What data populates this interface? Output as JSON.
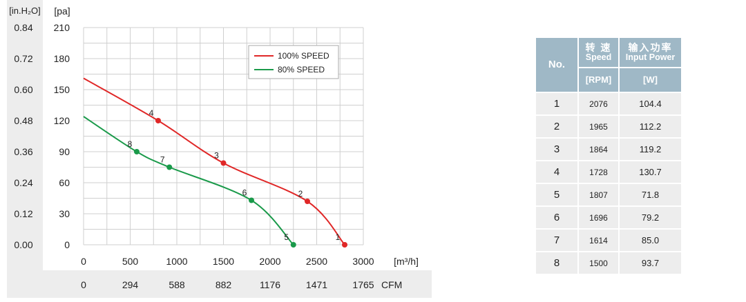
{
  "chart_data": {
    "type": "line",
    "x_units": "[m³/h]",
    "y_units": "[pa]",
    "left_axis_units": "[in.H₂O]",
    "bottom_axis_units": "CFM",
    "xlim": [
      0,
      3000
    ],
    "ylim": [
      0,
      210
    ],
    "x_ticks": [
      0,
      500,
      1000,
      1500,
      2000,
      2500,
      3000
    ],
    "y_ticks": [
      0,
      30,
      60,
      90,
      120,
      150,
      180,
      210
    ],
    "inh2o_ticks": [
      "0.00",
      "0.12",
      "0.24",
      "0.36",
      "0.48",
      "0.60",
      "0.72",
      "0.84"
    ],
    "cfm_ticks": [
      "0",
      "294",
      "588",
      "882",
      "1176",
      "1471",
      "1765"
    ],
    "grid": true,
    "legend_placement": "top-right",
    "series": [
      {
        "name": "100% SPEED",
        "color": "#e02727",
        "curve": [
          [
            0,
            161
          ],
          [
            800,
            120
          ],
          [
            1500,
            79
          ],
          [
            2400,
            42
          ],
          [
            2800,
            0
          ]
        ],
        "points": [
          {
            "label": "4",
            "x": 800,
            "y": 120
          },
          {
            "label": "3",
            "x": 1500,
            "y": 79
          },
          {
            "label": "2",
            "x": 2400,
            "y": 42
          },
          {
            "label": "1",
            "x": 2800,
            "y": 0
          }
        ]
      },
      {
        "name": "80%  SPEED",
        "color": "#1a9a4a",
        "curve": [
          [
            0,
            124
          ],
          [
            570,
            90
          ],
          [
            920,
            75
          ],
          [
            1800,
            43
          ],
          [
            2250,
            0
          ]
        ],
        "points": [
          {
            "label": "8",
            "x": 570,
            "y": 90
          },
          {
            "label": "7",
            "x": 920,
            "y": 75
          },
          {
            "label": "6",
            "x": 1800,
            "y": 43
          },
          {
            "label": "5",
            "x": 2250,
            "y": 0
          }
        ]
      }
    ]
  },
  "table": {
    "header_no": "No.",
    "header_speed_zh": "转 速",
    "header_speed_en": "Speed",
    "header_power_zh": "输入功率",
    "header_power_en": "Input Power",
    "unit_speed": "[RPM]",
    "unit_power": "[W]",
    "rows": [
      {
        "no": "1",
        "rpm": "2076",
        "w": "104.4"
      },
      {
        "no": "2",
        "rpm": "1965",
        "w": "112.2"
      },
      {
        "no": "3",
        "rpm": "1864",
        "w": "119.2"
      },
      {
        "no": "4",
        "rpm": "1728",
        "w": "130.7"
      },
      {
        "no": "5",
        "rpm": "1807",
        "w": "71.8"
      },
      {
        "no": "6",
        "rpm": "1696",
        "w": "79.2"
      },
      {
        "no": "7",
        "rpm": "1614",
        "w": "85.0"
      },
      {
        "no": "8",
        "rpm": "1500",
        "w": "93.7"
      }
    ]
  }
}
